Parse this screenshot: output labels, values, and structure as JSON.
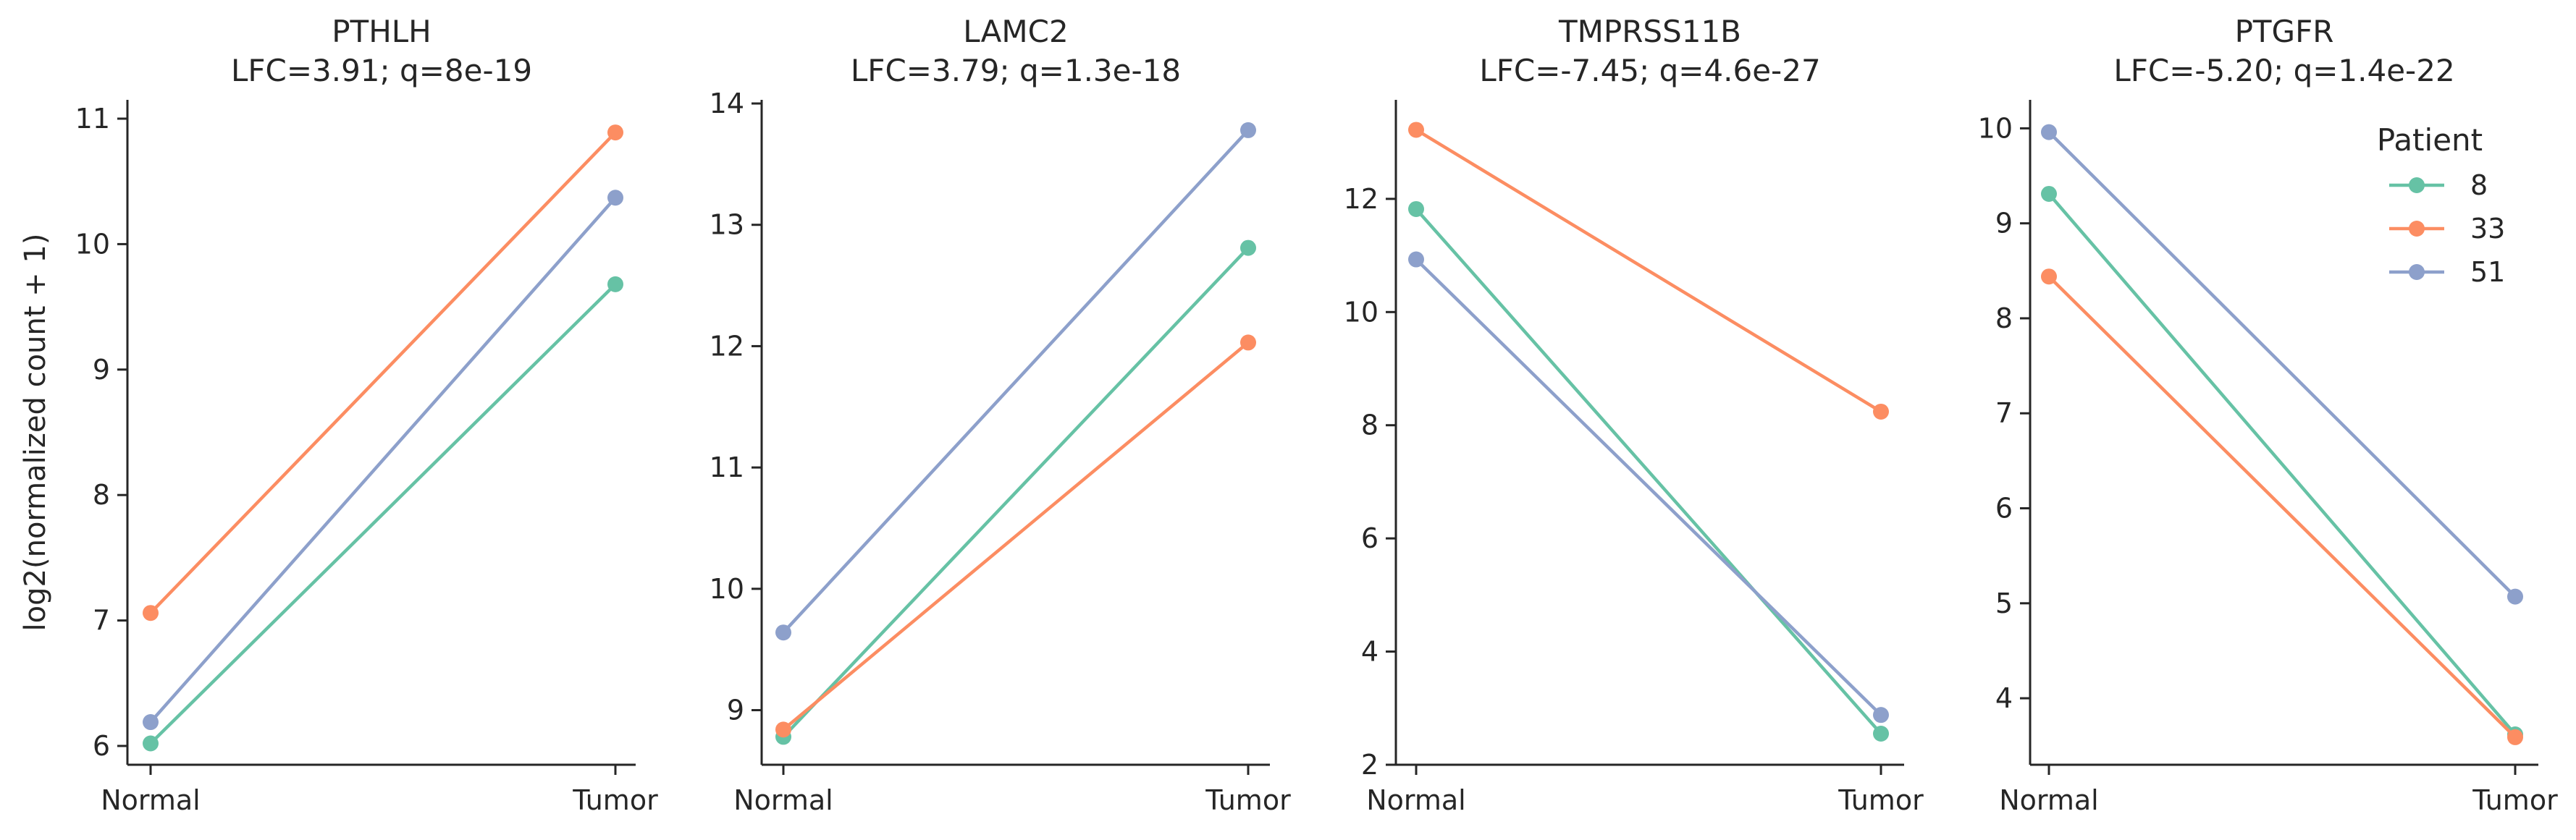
{
  "chart_data": [
    {
      "type": "line",
      "title": "PTHLH",
      "subtitle": "LFC=3.91; q=8e-19",
      "ylabel": "log2(normalized count + 1)",
      "xlabel": "",
      "categories": [
        "Normal",
        "Tumor"
      ],
      "ylim": [
        5.85,
        11.15
      ],
      "yticks": [
        6,
        7,
        8,
        9,
        10,
        11
      ],
      "series": [
        {
          "name": "8",
          "values": [
            6.02,
            9.68
          ]
        },
        {
          "name": "33",
          "values": [
            7.06,
            10.89
          ]
        },
        {
          "name": "51",
          "values": [
            6.19,
            10.37
          ]
        }
      ]
    },
    {
      "type": "line",
      "title": "LAMC2",
      "subtitle": "LFC=3.79; q=1.3e-18",
      "ylabel": "",
      "xlabel": "",
      "categories": [
        "Normal",
        "Tumor"
      ],
      "ylim": [
        8.55,
        14.03
      ],
      "yticks": [
        9,
        10,
        11,
        12,
        13,
        14
      ],
      "series": [
        {
          "name": "8",
          "values": [
            8.78,
            12.81
          ]
        },
        {
          "name": "33",
          "values": [
            8.84,
            12.03
          ]
        },
        {
          "name": "51",
          "values": [
            9.64,
            13.78
          ]
        }
      ]
    },
    {
      "type": "line",
      "title": "TMPRSS11B",
      "subtitle": "LFC=-7.45; q=4.6e-27",
      "ylabel": "",
      "xlabel": "",
      "categories": [
        "Normal",
        "Tumor"
      ],
      "ylim": [
        2.0,
        13.75
      ],
      "yticks": [
        2,
        4,
        6,
        8,
        10,
        12
      ],
      "series": [
        {
          "name": "8",
          "values": [
            11.82,
            2.55
          ]
        },
        {
          "name": "33",
          "values": [
            13.22,
            8.24
          ]
        },
        {
          "name": "51",
          "values": [
            10.93,
            2.88
          ]
        }
      ]
    },
    {
      "type": "line",
      "title": "PTGFR",
      "subtitle": "LFC=-5.20; q=1.4e-22",
      "ylabel": "",
      "xlabel": "",
      "categories": [
        "Normal",
        "Tumor"
      ],
      "ylim": [
        3.3,
        10.3
      ],
      "yticks": [
        4,
        5,
        6,
        7,
        8,
        9,
        10
      ],
      "legend": {
        "title": "Patient",
        "placement": "top-right"
      },
      "series": [
        {
          "name": "8",
          "values": [
            9.31,
            3.62
          ]
        },
        {
          "name": "33",
          "values": [
            8.44,
            3.59
          ]
        },
        {
          "name": "51",
          "values": [
            9.96,
            5.07
          ]
        }
      ]
    }
  ],
  "colors": {
    "8": "#66c2a5",
    "33": "#fc8d62",
    "51": "#8da0cb",
    "axis": "#262626"
  }
}
